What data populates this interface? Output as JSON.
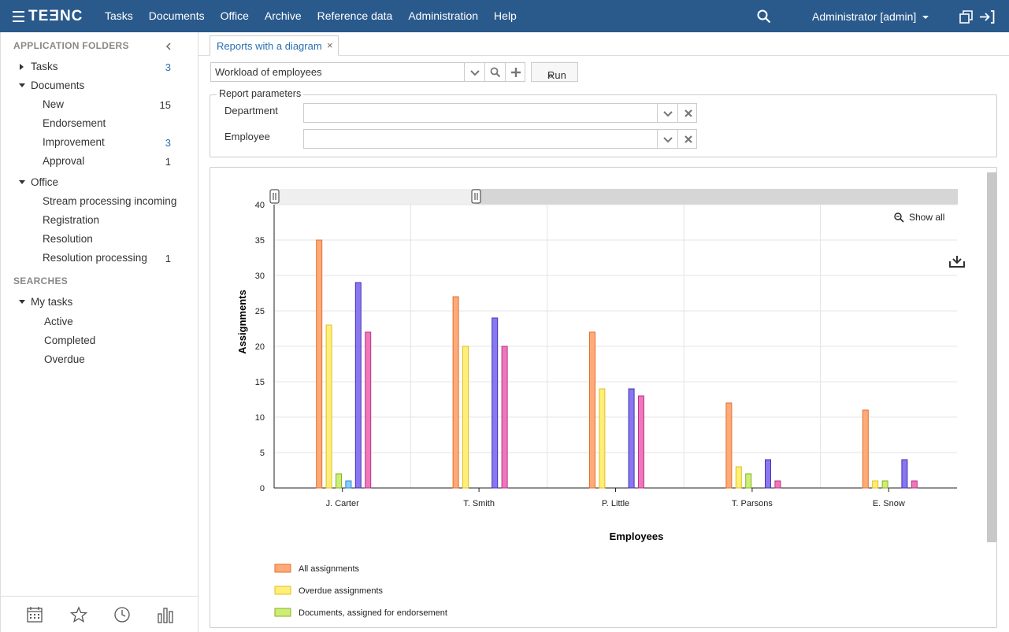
{
  "app": {
    "brand": "TEƎNC"
  },
  "topnav": [
    "Tasks",
    "Documents",
    "Office",
    "Archive",
    "Reference data",
    "Administration",
    "Help"
  ],
  "user": {
    "label": "Administrator [admin]"
  },
  "sidebar": {
    "folders_header": "APPLICATION FOLDERS",
    "tasks": {
      "label": "Tasks",
      "count": "3"
    },
    "documents": {
      "label": "Documents"
    },
    "doc_items": [
      {
        "label": "New",
        "count": "15"
      },
      {
        "label": "Endorsement",
        "count": ""
      },
      {
        "label": "Improvement",
        "count": "3"
      },
      {
        "label": "Approval",
        "count": "1"
      }
    ],
    "office": {
      "label": "Office"
    },
    "office_items": [
      {
        "label": "Stream processing incoming",
        "count": ""
      },
      {
        "label": "Registration",
        "count": ""
      },
      {
        "label": "Resolution",
        "count": ""
      },
      {
        "label": "Resolution processing",
        "count": "1"
      }
    ],
    "searches_header": "SEARCHES",
    "my_tasks": {
      "label": "My tasks"
    },
    "search_items": [
      "Active",
      "Completed",
      "Overdue"
    ]
  },
  "tab": {
    "label": "Reports with a diagram",
    "close": "×"
  },
  "report": {
    "selected": "Workload of employees",
    "run_label": "Run",
    "run_glyph": "»"
  },
  "params": {
    "legend": "Report parameters",
    "department_label": "Department",
    "department_value": "",
    "employee_label": "Employee",
    "employee_value": ""
  },
  "chart_data": {
    "type": "bar",
    "title": "",
    "xlabel": "Employees",
    "ylabel": "Assignments",
    "ylim": [
      0,
      40
    ],
    "yticks": [
      0,
      5,
      10,
      15,
      20,
      25,
      30,
      35,
      40
    ],
    "grid": true,
    "legend_position": "bottom-left",
    "show_all_label": "Show all",
    "categories": [
      "J. Carter",
      "T. Smith",
      "P. Little",
      "T. Parsons",
      "E. Snow"
    ],
    "series": [
      {
        "name": "All assignments",
        "color": "#ffaa77",
        "stroke": "#e07030",
        "values": [
          35,
          27,
          22,
          12,
          11
        ]
      },
      {
        "name": "Overdue assignments",
        "color": "#ffee77",
        "stroke": "#e0c020",
        "values": [
          23,
          20,
          14,
          3,
          1
        ]
      },
      {
        "name": "Documents, assigned for endorsement",
        "color": "#ccee77",
        "stroke": "#8ab020",
        "values": [
          2,
          0,
          0,
          2,
          1
        ]
      },
      {
        "name": "",
        "color": "#88ccff",
        "stroke": "#3388cc",
        "values": [
          1,
          0,
          0,
          0,
          0
        ]
      },
      {
        "name": "",
        "color": "#8877ee",
        "stroke": "#4433bb",
        "values": [
          29,
          24,
          14,
          4,
          4
        ]
      },
      {
        "name": "",
        "color": "#ee77bb",
        "stroke": "#bb3388",
        "values": [
          22,
          20,
          13,
          1,
          1
        ]
      }
    ]
  }
}
